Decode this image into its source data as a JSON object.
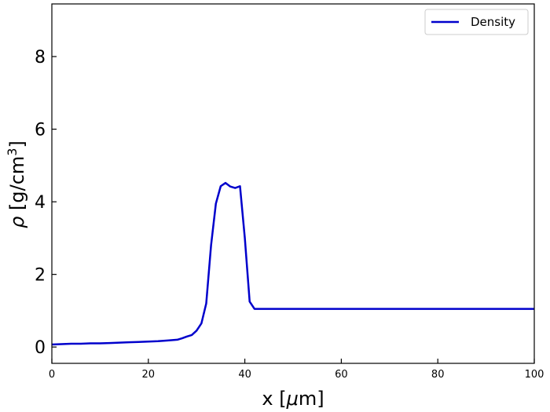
{
  "chart_data": {
    "type": "line",
    "xlabel_prefix": "x [",
    "xlabel_mu": "μ",
    "xlabel_suffix": "m]",
    "ylabel_rho": "ρ",
    "ylabel_unit": "[g/cm",
    "ylabel_sup": "3",
    "ylabel_close": "]",
    "xlim": [
      0,
      100
    ],
    "ylim": [
      -0.45,
      9.45
    ],
    "x_ticks": [
      0,
      20,
      40,
      60,
      80,
      100
    ],
    "y_ticks": [
      0,
      2,
      4,
      6,
      8
    ],
    "grid": false,
    "legend_position": "top-right",
    "series": [
      {
        "name": "Density",
        "color": "#0000cc",
        "x": [
          0,
          2,
          4,
          6,
          8,
          10,
          12,
          14,
          16,
          18,
          20,
          22,
          24,
          26,
          27,
          28,
          29,
          30,
          31,
          32,
          33,
          34,
          35,
          36,
          37,
          38,
          39,
          40,
          41,
          42,
          44,
          50,
          60,
          70,
          80,
          90,
          100
        ],
        "y": [
          0.07,
          0.08,
          0.09,
          0.09,
          0.1,
          0.1,
          0.11,
          0.12,
          0.13,
          0.14,
          0.15,
          0.16,
          0.18,
          0.2,
          0.24,
          0.29,
          0.33,
          0.45,
          0.65,
          1.2,
          2.8,
          3.95,
          4.43,
          4.52,
          4.42,
          4.38,
          4.43,
          3.0,
          1.25,
          1.05,
          1.05,
          1.05,
          1.05,
          1.05,
          1.05,
          1.05,
          1.05
        ]
      }
    ]
  }
}
